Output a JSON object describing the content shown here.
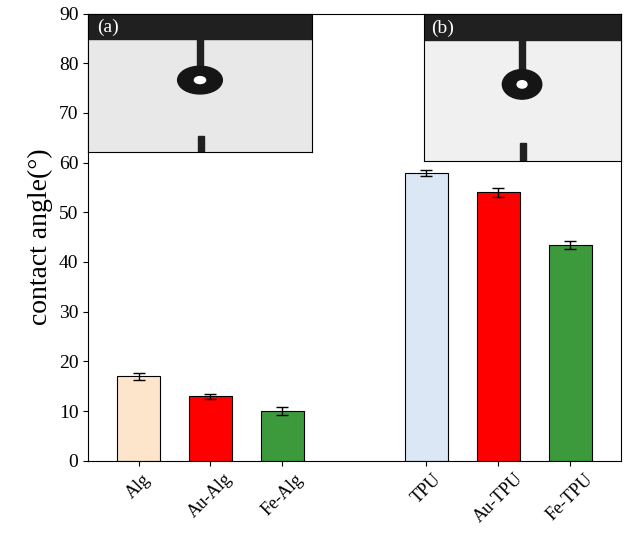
{
  "chart_data": {
    "type": "bar",
    "y_label": "contact angle(°)",
    "categories": [
      "Alg",
      "Au-Alg",
      "Fe-Alg",
      null,
      "TPU",
      "Au-TPU",
      "Fe-TPU"
    ],
    "values": [
      17,
      13,
      10,
      null,
      58,
      54,
      43.5
    ],
    "errors": [
      0.7,
      0.5,
      0.8,
      null,
      0.6,
      0.9,
      0.8
    ],
    "colors": [
      "#fde5cc",
      "#ff0000",
      "#3c9a3c",
      null,
      "#dce7f6",
      "#ff0000",
      "#3c9a3c"
    ],
    "ylim": [
      0,
      90
    ],
    "yticks": [
      0,
      10,
      20,
      30,
      40,
      50,
      60,
      70,
      80,
      90
    ],
    "annotations": [
      "(a)",
      "(b)"
    ]
  }
}
